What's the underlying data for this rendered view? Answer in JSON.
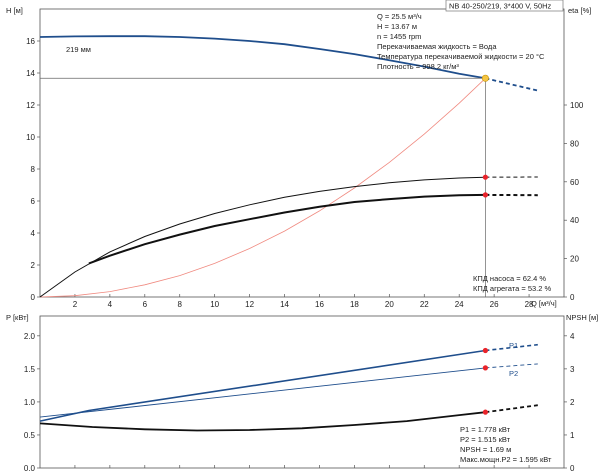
{
  "chart_data": [
    {
      "type": "line",
      "title": "NB 40-250/219, 3*400 V, 50Hz",
      "xlabel": "Q [м³/ч]",
      "ylabel_left": "H [м]",
      "ylabel_right": "eta [%]",
      "xlim": [
        0,
        30
      ],
      "ylim_left": [
        0,
        18
      ],
      "ylim_right": [
        0,
        150
      ],
      "x_ticks": [
        2,
        4,
        6,
        8,
        10,
        12,
        14,
        16,
        18,
        20,
        22,
        24,
        26,
        28
      ],
      "y_ticks_left": [
        0,
        2,
        4,
        6,
        8,
        10,
        12,
        14,
        16
      ],
      "y_ticks_right": [
        0,
        20,
        40,
        60,
        80,
        100
      ],
      "annotations": {
        "curve_label": "219 мм"
      },
      "duty_point_text": [
        "Q = 25.5 м³/ч",
        "H = 13.67 м",
        "n = 1455 rpm",
        "Перекачиваемая жидкость = Вода",
        "Температура перекачиваемой жидкости = 20 °C",
        "Плотность = 998.2 кг/м³"
      ],
      "efficiency_text": [
        "КПД насоса = 62.4 %",
        "КПД агрегата = 53.2 %"
      ],
      "duty_point": {
        "q": 25.5,
        "h": 13.67
      },
      "series": [
        {
          "kind": "head",
          "axis": "left",
          "color": "#1f4e8c",
          "x": [
            0,
            2,
            4,
            6,
            8,
            10,
            12,
            14,
            16,
            18,
            20,
            22,
            24,
            25.5
          ],
          "y": [
            16.25,
            16.29,
            16.3,
            16.3,
            16.25,
            16.15,
            16.0,
            15.8,
            15.5,
            15.18,
            14.8,
            14.4,
            13.95,
            13.67
          ],
          "ext_x": [
            25.5,
            28.5
          ],
          "ext_y": [
            13.67,
            12.9
          ]
        },
        {
          "kind": "system",
          "axis": "left",
          "color": "#f08a80",
          "x": [
            0,
            2,
            4,
            6,
            8,
            10,
            12,
            14,
            16,
            18,
            20,
            22,
            24,
            25.5
          ],
          "y": [
            0,
            0.08,
            0.34,
            0.76,
            1.34,
            2.1,
            3.03,
            4.12,
            5.38,
            6.81,
            8.41,
            10.18,
            12.11,
            13.67
          ]
        },
        {
          "kind": "eta_pump",
          "axis": "right",
          "color": "#111111",
          "x": [
            0,
            2,
            4,
            6,
            8,
            10,
            12,
            14,
            16,
            18,
            20,
            22,
            24,
            25.5
          ],
          "y": [
            0,
            13,
            23.5,
            31.5,
            38,
            43.5,
            48,
            52,
            55,
            57.5,
            59.5,
            61,
            62,
            62.4
          ],
          "ext_x": [
            25.5,
            28.5
          ],
          "ext_y": [
            62.4,
            62.5
          ]
        },
        {
          "kind": "eta_unit",
          "axis": "right",
          "color": "#111111",
          "x": [
            2.8,
            4,
            6,
            8,
            10,
            12,
            14,
            16,
            18,
            20,
            22,
            24,
            25.5
          ],
          "y": [
            17.5,
            21.5,
            27.5,
            32.5,
            37,
            40.5,
            44,
            47,
            49.5,
            51,
            52.3,
            53,
            53.2
          ],
          "ext_x": [
            25.5,
            28.5
          ],
          "ext_y": [
            53.2,
            53
          ]
        }
      ],
      "grid": false
    },
    {
      "type": "line",
      "xlabel": "",
      "ylabel_left": "P [кВт]",
      "ylabel_right": "NPSH [м]",
      "xlim": [
        0,
        30
      ],
      "ylim_left": [
        0,
        2.3
      ],
      "ylim_right": [
        0,
        4.6
      ],
      "y_ticks_left": [
        0.0,
        0.5,
        1.0,
        1.5,
        2.0
      ],
      "y_ticks_right": [
        0,
        1,
        2,
        3,
        4
      ],
      "info_text": [
        "P1 = 1.778 кВт",
        "P2 = 1.515 кВт",
        "NPSH = 1.69 м",
        "Макс.мощн.P2 = 1.595 кВт"
      ],
      "series": [
        {
          "name": "P1",
          "axis": "left",
          "color": "#1f4e8c",
          "x": [
            0,
            2.8,
            25.5
          ],
          "y": [
            0.71,
            0.87,
            1.778
          ],
          "ext_x": [
            25.5,
            28.5
          ],
          "ext_y": [
            1.778,
            1.865
          ]
        },
        {
          "name": "P2",
          "axis": "left",
          "color": "#1f4e8c",
          "x": [
            0,
            25.5
          ],
          "y": [
            0.77,
            1.515
          ],
          "ext_x": [
            25.5,
            28.5
          ],
          "ext_y": [
            1.515,
            1.575
          ]
        },
        {
          "kind": "npsh",
          "axis": "right",
          "color": "#111111",
          "x": [
            0,
            3,
            6,
            9,
            12,
            15,
            18,
            21,
            24,
            25.5
          ],
          "y": [
            1.35,
            1.24,
            1.17,
            1.135,
            1.15,
            1.2,
            1.3,
            1.42,
            1.6,
            1.69
          ],
          "ext_x": [
            25.5,
            28.5
          ],
          "ext_y": [
            1.69,
            1.9
          ]
        }
      ],
      "grid": false
    }
  ]
}
